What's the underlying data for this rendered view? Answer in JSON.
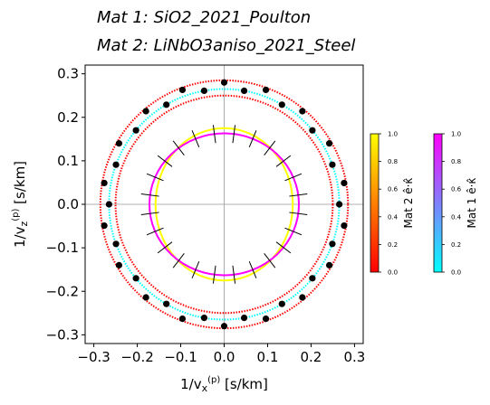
{
  "chart_data": {
    "type": "dispersion",
    "titles": [
      "Mat 1: SiO2_2021_Poulton",
      "Mat 2: LiNbO3aniso_2021_Steel"
    ],
    "xlabel": [
      "1/v",
      "x",
      "(p)",
      " [s/km]"
    ],
    "ylabel": [
      "1/v",
      "z",
      "(p)",
      " [s/km]"
    ],
    "xlim": [
      -0.32,
      0.32
    ],
    "ylim": [
      -0.32,
      0.32
    ],
    "xticks": [
      {
        "value": -0.3,
        "label": "−0.3"
      },
      {
        "value": -0.2,
        "label": "−0.2"
      },
      {
        "value": -0.1,
        "label": "−0.1"
      },
      {
        "value": 0,
        "label": "0.0"
      },
      0.1,
      0.2,
      0.3
    ],
    "yticks": [
      {
        "value": -0.3,
        "label": "−0.3"
      },
      {
        "value": -0.2,
        "label": "−0.2"
      },
      {
        "value": -0.1,
        "label": "−0.1"
      },
      {
        "value": 0,
        "label": "0.0"
      },
      0.1,
      0.2,
      0.3
    ],
    "zero_lines": true,
    "curves": [
      {
        "color": "#ff0000",
        "rx": 0.285,
        "ry": 0.285,
        "style": "dotted"
      },
      {
        "color": "#00ffff",
        "rx": 0.265,
        "ry": 0.265,
        "style": "dotted"
      },
      {
        "color": "#ff0000",
        "rx": 0.25,
        "ry": 0.25,
        "style": "dotted"
      },
      {
        "color": "#ffff00",
        "rx": 0.158,
        "ry": 0.175,
        "style": "solid"
      },
      {
        "color": "#ff00ff",
        "rx": 0.172,
        "ry": 0.163,
        "style": "solid"
      }
    ],
    "dots": {
      "color": "#000000",
      "x": [
        0,
        0,
        0.096,
        -0.096,
        0.096,
        -0.096,
        0.18,
        -0.18,
        0.18,
        -0.18,
        0.242,
        -0.242,
        0.242,
        -0.242,
        0.276,
        -0.276,
        0.276,
        -0.276,
        0.265,
        -0.265,
        0.046,
        -0.046,
        0.046,
        -0.046,
        0.133,
        -0.133,
        0.133,
        -0.133,
        0.203,
        -0.203,
        0.203,
        -0.203,
        0.249,
        -0.249,
        0.249,
        -0.249
      ],
      "y": [
        0.28,
        -0.28,
        0.263,
        0.263,
        -0.263,
        -0.263,
        0.214,
        0.214,
        -0.214,
        -0.214,
        0.14,
        0.14,
        -0.14,
        -0.14,
        0.049,
        0.049,
        -0.049,
        -0.049,
        0,
        0,
        0.261,
        0.261,
        -0.261,
        -0.261,
        0.229,
        0.229,
        -0.229,
        -0.229,
        0.17,
        0.17,
        -0.17,
        -0.17,
        0.091,
        0.091,
        -0.091,
        -0.091
      ]
    },
    "colorbars": [
      {
        "label": "Mat 2 ê·κ̂",
        "colors": [
          "#ff0000",
          "#ff8000",
          "#ffff00"
        ],
        "lim": [
          0,
          1
        ],
        "ticks": [
          {
            "value": 0,
            "label": "0.0"
          },
          0.2,
          0.4,
          0.6,
          0.8,
          {
            "value": 1,
            "label": "1.0"
          }
        ]
      },
      {
        "label": "Mat 1 ê·κ̂",
        "colors": [
          "#00ffff",
          "#8080ff",
          "#ff00ff"
        ],
        "lim": [
          0,
          1
        ],
        "ticks": [
          {
            "value": 0,
            "label": "0.0"
          },
          0.2,
          0.4,
          0.6,
          0.8,
          {
            "value": 1,
            "label": "1.0"
          }
        ]
      }
    ]
  }
}
